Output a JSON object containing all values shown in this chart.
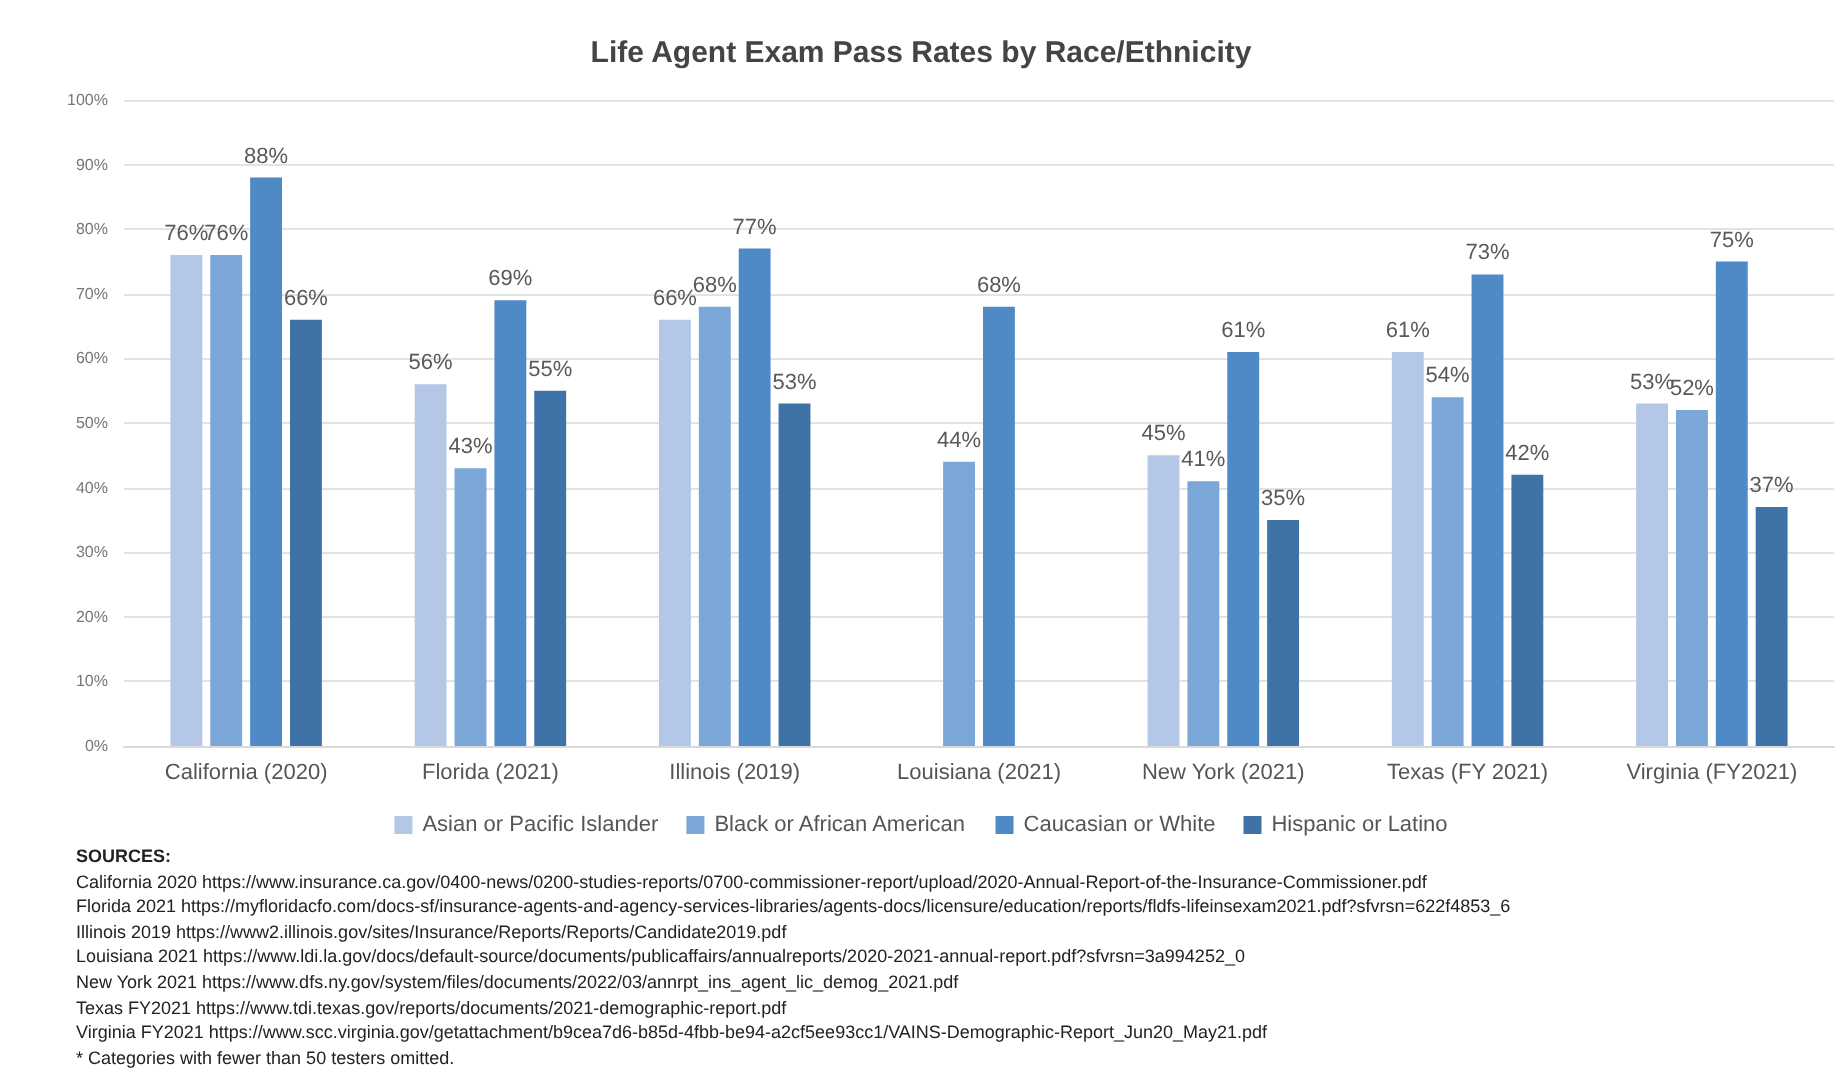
{
  "chart_data": {
    "type": "bar",
    "title": "Life Agent Exam Pass Rates by Race/Ethnicity",
    "categories": [
      "California (2020)",
      "Florida (2021)",
      "Illinois (2019)",
      "Louisiana (2021)",
      "New York (2021)",
      "Texas (FY 2021)",
      "Virginia (FY2021)"
    ],
    "series": [
      {
        "name": "Asian or Pacific Islander",
        "color": "#b4c7e7",
        "values": [
          76,
          56,
          66,
          null,
          45,
          61,
          53
        ],
        "value_labels": [
          "76%",
          "56%",
          "66%",
          null,
          "45%",
          "61%",
          "53%"
        ]
      },
      {
        "name": "Black or African American",
        "color": "#7aa6d8",
        "values": [
          76,
          43,
          68,
          44,
          41,
          54,
          52
        ],
        "value_labels": [
          "76%",
          "43%",
          "68%",
          "44%",
          "41%",
          "54%",
          "52%"
        ]
      },
      {
        "name": "Caucasian or White",
        "color": "#4f8ac6",
        "values": [
          88,
          69,
          77,
          68,
          61,
          73,
          75
        ],
        "value_labels": [
          "88%",
          "69%",
          "77%",
          "68%",
          "61%",
          "73%",
          "75%"
        ]
      },
      {
        "name": "Hispanic or Latino",
        "color": "#3f72a6",
        "values": [
          66,
          55,
          53,
          null,
          35,
          42,
          37
        ],
        "value_labels": [
          "66%",
          "55%",
          "53%",
          null,
          "35%",
          "42%",
          "37%"
        ]
      }
    ],
    "ylim": [
      0,
      100
    ],
    "yticks": [
      {
        "value": 0,
        "label": "0%"
      },
      {
        "value": 10,
        "label": "10%"
      },
      {
        "value": 20,
        "label": "20%"
      },
      {
        "value": 30,
        "label": "30%"
      },
      {
        "value": 40,
        "label": "40%"
      },
      {
        "value": 50,
        "label": "50%"
      },
      {
        "value": 60,
        "label": "60%"
      },
      {
        "value": 70,
        "label": "70%"
      },
      {
        "value": 80,
        "label": "80%"
      },
      {
        "value": 90,
        "label": "90%"
      },
      {
        "value": 100,
        "label": "100%"
      }
    ],
    "grid": "y",
    "legend": "bottom",
    "annotations": [
      "SOURCES:",
      "California 2020 https://www.insurance.ca.gov/0400-news/0200-studies-reports/0700-commissioner-report/upload/2020-Annual-Report-of-the-Insurance-Commissioner.pdf",
      "Florida 2021 https://myfloridacfo.com/docs-sf/insurance-agents-and-agency-services-libraries/agents-docs/licensure/education/reports/fldfs-lifeinsexam2021.pdf?sfvrsn=622f4853_6",
      "Illinois 2019 https://www2.illinois.gov/sites/Insurance/Reports/Reports/Candidate2019.pdf",
      "Louisiana 2021 https://www.ldi.la.gov/docs/default-source/documents/publicaffairs/annualreports/2020-2021-annual-report.pdf?sfvrsn=3a994252_0",
      "New York 2021 https://www.dfs.ny.gov/system/files/documents/2022/03/annrpt_ins_agent_lic_demog_2021.pdf",
      "Texas FY2021 https://www.tdi.texas.gov/reports/documents/2021-demographic-report.pdf",
      "Virginia FY2021 https://www.scc.virginia.gov/getattachment/b9cea7d6-b85d-4fbb-be94-a2cf5ee93cc1/VAINS-Demographic-Report_Jun20_May21.pdf",
      "* Categories with fewer than 50 testers omitted."
    ]
  }
}
